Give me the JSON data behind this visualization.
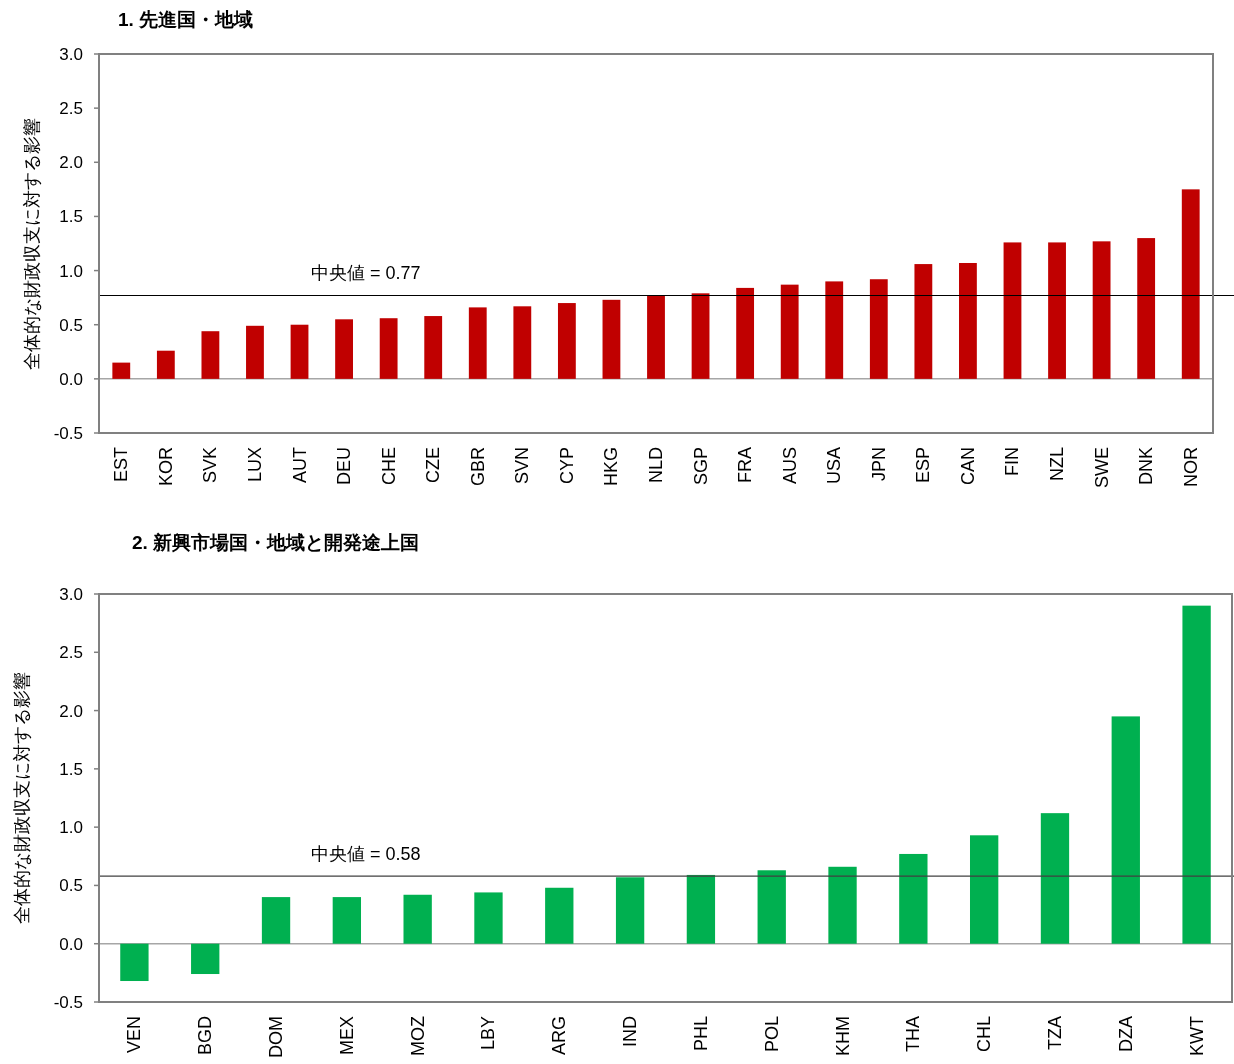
{
  "chart_data": [
    {
      "type": "bar",
      "title": "1. 先進国・地域",
      "ylabel": "全体的な財政収支に対する影響",
      "categories": [
        "EST",
        "KOR",
        "SVK",
        "LUX",
        "AUT",
        "DEU",
        "CHE",
        "CZE",
        "GBR",
        "SVN",
        "CYP",
        "HKG",
        "NLD",
        "SGP",
        "FRA",
        "AUS",
        "USA",
        "JPN",
        "ESP",
        "CAN",
        "FIN",
        "NZL",
        "SWE",
        "DNK",
        "NOR"
      ],
      "values": [
        0.15,
        0.26,
        0.44,
        0.49,
        0.5,
        0.55,
        0.56,
        0.58,
        0.66,
        0.67,
        0.7,
        0.73,
        0.77,
        0.79,
        0.84,
        0.87,
        0.9,
        0.92,
        1.06,
        1.07,
        1.26,
        1.26,
        1.27,
        1.3,
        1.75
      ],
      "color": "#c00000",
      "ylim": [
        -0.5,
        3.0
      ],
      "yticks": [
        {
          "value": -0.5,
          "label": "-0.5"
        },
        {
          "value": 0,
          "label": "0.0"
        },
        {
          "value": 0.5,
          "label": "0.5"
        },
        {
          "value": 1,
          "label": "1.0"
        },
        {
          "value": 1.5,
          "label": "1.5"
        },
        {
          "value": 2,
          "label": "2.0"
        },
        {
          "value": 2.5,
          "label": "2.5"
        },
        {
          "value": 3,
          "label": "3.0"
        }
      ],
      "ref_lines": [
        {
          "axis": "y",
          "value": 0.77,
          "label": "中央値 = 0.77",
          "color": "#000000"
        }
      ]
    },
    {
      "type": "bar",
      "title": "2. 新興市場国・地域と開発途上国",
      "ylabel": "全体的な財政収支に対する影響",
      "categories": [
        "VEN",
        "BGD",
        "DOM",
        "MEX",
        "MOZ",
        "LBY",
        "ARG",
        "IND",
        "PHL",
        "POL",
        "KHM",
        "THA",
        "CHL",
        "TZA",
        "DZA",
        "KWT"
      ],
      "values": [
        -0.32,
        -0.26,
        0.4,
        0.4,
        0.42,
        0.44,
        0.48,
        0.57,
        0.59,
        0.63,
        0.66,
        0.77,
        0.93,
        1.12,
        1.95,
        2.9
      ],
      "color": "#00b050",
      "ylim": [
        -0.5,
        3.0
      ],
      "yticks": [
        {
          "value": -0.5,
          "label": "-0.5"
        },
        {
          "value": 0,
          "label": "0.0"
        },
        {
          "value": 0.5,
          "label": "0.5"
        },
        {
          "value": 1,
          "label": "1.0"
        },
        {
          "value": 1.5,
          "label": "1.5"
        },
        {
          "value": 2,
          "label": "2.0"
        },
        {
          "value": 2.5,
          "label": "2.5"
        },
        {
          "value": 3,
          "label": "3.0"
        }
      ],
      "ref_lines": [
        {
          "axis": "y",
          "value": 0.58,
          "label": "中央値 = 0.58",
          "color": "#404040"
        }
      ]
    }
  ]
}
